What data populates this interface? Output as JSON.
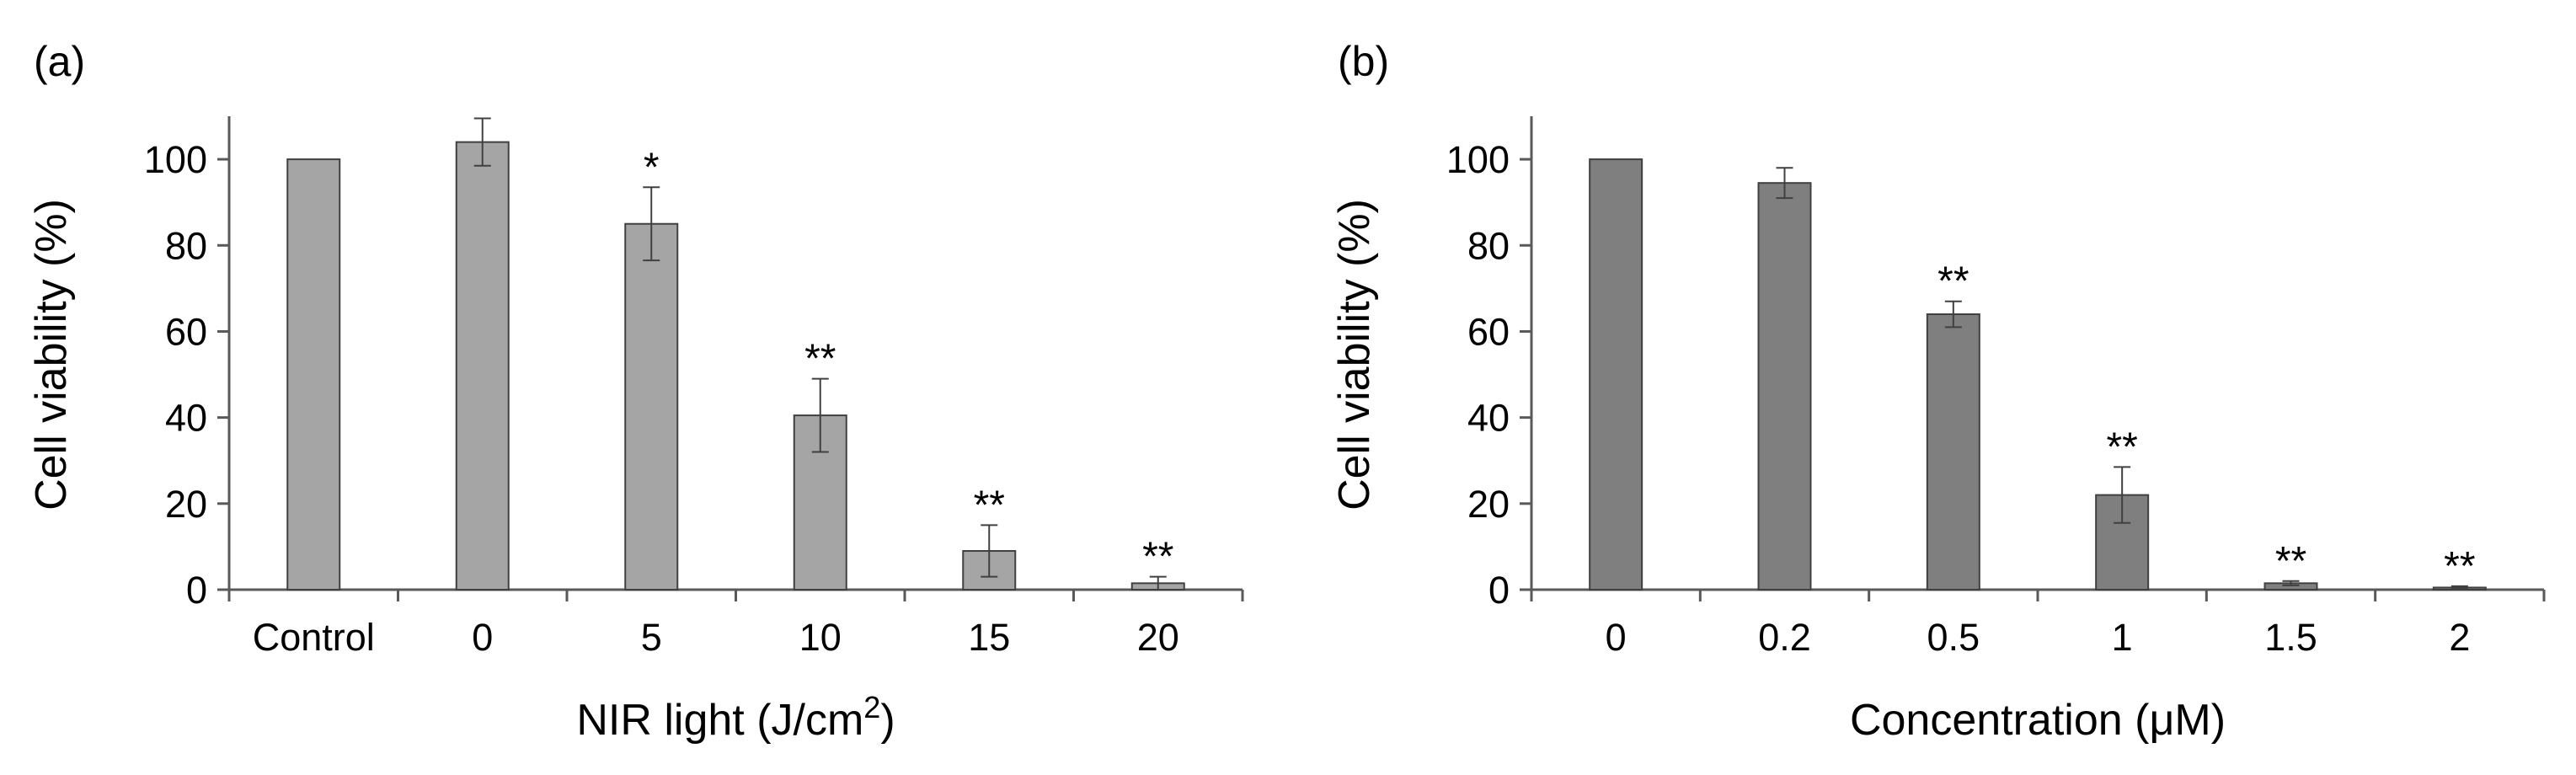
{
  "chart_data": [
    {
      "type": "bar",
      "panel_label": "(a)",
      "categories": [
        "Control",
        "0",
        "5",
        "10",
        "15",
        "20"
      ],
      "values": [
        100,
        104,
        85,
        40.5,
        9,
        1.5
      ],
      "errors": [
        0,
        5.5,
        8.5,
        8.5,
        6,
        1.5
      ],
      "significance": [
        "",
        "",
        "*",
        "**",
        "**",
        "**"
      ],
      "xlabel": "NIR light (J/cm",
      "xlabel_superscript": "2",
      "xlabel_suffix": ")",
      "ylabel": "Cell viability (%)",
      "ylim": [
        0,
        110
      ],
      "yticks": [
        0,
        20,
        40,
        60,
        80,
        100
      ],
      "bar_color": "#a5a5a5",
      "grid": false
    },
    {
      "type": "bar",
      "panel_label": "(b)",
      "categories": [
        "0",
        "0.2",
        "0.5",
        "1",
        "1.5",
        "2"
      ],
      "values": [
        100,
        94.5,
        64,
        22,
        1.5,
        0.5
      ],
      "errors": [
        0,
        3.5,
        3,
        6.5,
        0.5,
        0.3
      ],
      "significance": [
        "",
        "",
        "**",
        "**",
        "**",
        "**"
      ],
      "xlabel": "Concentration (μM)",
      "xlabel_superscript": "",
      "xlabel_suffix": "",
      "ylabel": "Cell viability (%)",
      "ylim": [
        0,
        110
      ],
      "yticks": [
        0,
        20,
        40,
        60,
        80,
        100
      ],
      "bar_color": "#7f7f7f",
      "grid": false
    }
  ]
}
